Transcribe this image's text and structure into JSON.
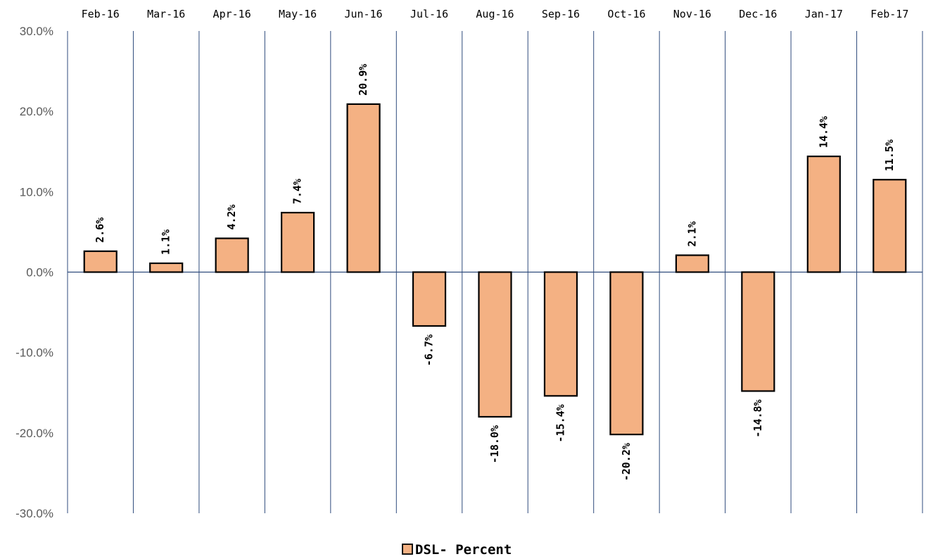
{
  "chart_data": {
    "type": "bar",
    "categories": [
      "Feb-16",
      "Mar-16",
      "Apr-16",
      "May-16",
      "Jun-16",
      "Jul-16",
      "Aug-16",
      "Sep-16",
      "Oct-16",
      "Nov-16",
      "Dec-16",
      "Jan-17",
      "Feb-17"
    ],
    "series": [
      {
        "name": "DSL- Percent",
        "values": [
          2.6,
          1.1,
          4.2,
          7.4,
          20.9,
          -6.7,
          -18.0,
          -15.4,
          -20.2,
          2.1,
          -14.8,
          14.4,
          11.5
        ],
        "labels": [
          "2.6%",
          "1.1%",
          "4.2%",
          "7.4%",
          "20.9%",
          "-6.7%",
          "-18.0%",
          "-15.4%",
          "-20.2%",
          "2.1%",
          "-14.8%",
          "14.4%",
          "11.5%"
        ],
        "color": "#F4B183"
      }
    ],
    "ylim": [
      -30,
      30
    ],
    "yticks": [
      30,
      20,
      10,
      0,
      -10,
      -20,
      -30
    ],
    "ytick_labels": [
      "30.0%",
      "20.0%",
      "10.0%",
      "0.0%",
      "-10.0%",
      "-20.0%",
      "-30.0%"
    ],
    "xaxis_position": "top",
    "grid": "vertical",
    "legend": "bottom-center",
    "title": "",
    "xlabel": "",
    "ylabel": "",
    "colors": {
      "bar": "#F4B183",
      "bar_outline": "#000000",
      "gridline": "#2F4B7C",
      "axis": "#2F4B7C"
    }
  }
}
